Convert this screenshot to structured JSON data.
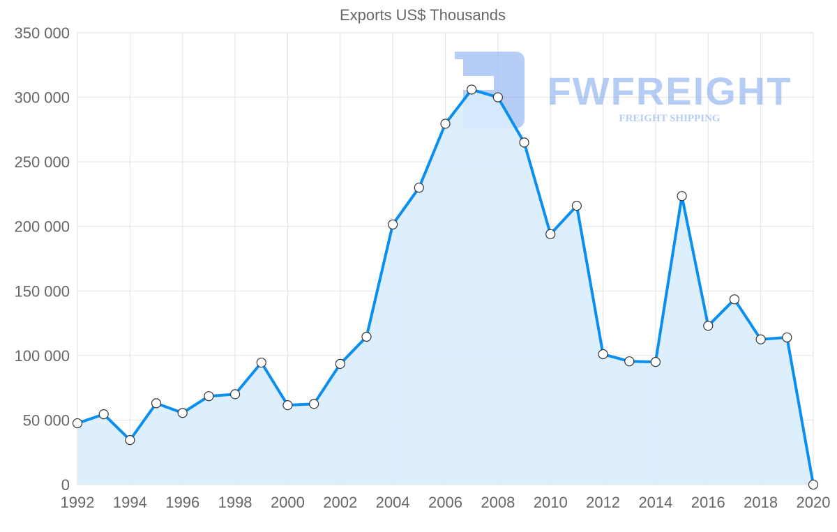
{
  "chart_data": {
    "type": "line",
    "title": "Exports US$ Thousands",
    "xlabel": "",
    "ylabel": "",
    "x": [
      1992,
      1993,
      1994,
      1995,
      1996,
      1997,
      1998,
      1999,
      2000,
      2001,
      2002,
      2003,
      2004,
      2005,
      2006,
      2007,
      2008,
      2009,
      2010,
      2011,
      2012,
      2013,
      2014,
      2015,
      2016,
      2017,
      2018,
      2019,
      2020
    ],
    "series": [
      {
        "name": "Exports US$ Thousands",
        "values": [
          47500,
          54500,
          34500,
          63000,
          55500,
          68500,
          70000,
          94500,
          61500,
          62500,
          93500,
          114500,
          201500,
          230000,
          279500,
          306000,
          300000,
          265000,
          194000,
          216000,
          101000,
          95500,
          95000,
          223500,
          123000,
          143500,
          112500,
          114000,
          0
        ],
        "color": "#0a8ef0",
        "fill": "#d9ecfd"
      }
    ],
    "ylim": [
      0,
      350000
    ],
    "yticks": [
      0,
      50000,
      100000,
      150000,
      200000,
      250000,
      300000,
      350000
    ],
    "ytick_labels": [
      "0",
      "50 000",
      "100 000",
      "150 000",
      "200 000",
      "250 000",
      "300 000",
      "350 000"
    ],
    "xticks": [
      1992,
      1994,
      1996,
      1998,
      2000,
      2002,
      2004,
      2006,
      2008,
      2010,
      2012,
      2014,
      2016,
      2018,
      2020
    ],
    "xtick_labels": [
      "1992",
      "1994",
      "1996",
      "1998",
      "2000",
      "2002",
      "2004",
      "2006",
      "2008",
      "2010",
      "2012",
      "2014",
      "2016",
      "2018",
      "2020"
    ],
    "grid": true,
    "legend": "none"
  },
  "watermark": {
    "brand": "FWFREIGHT",
    "tagline": "FREIGHT SHIPPING"
  }
}
